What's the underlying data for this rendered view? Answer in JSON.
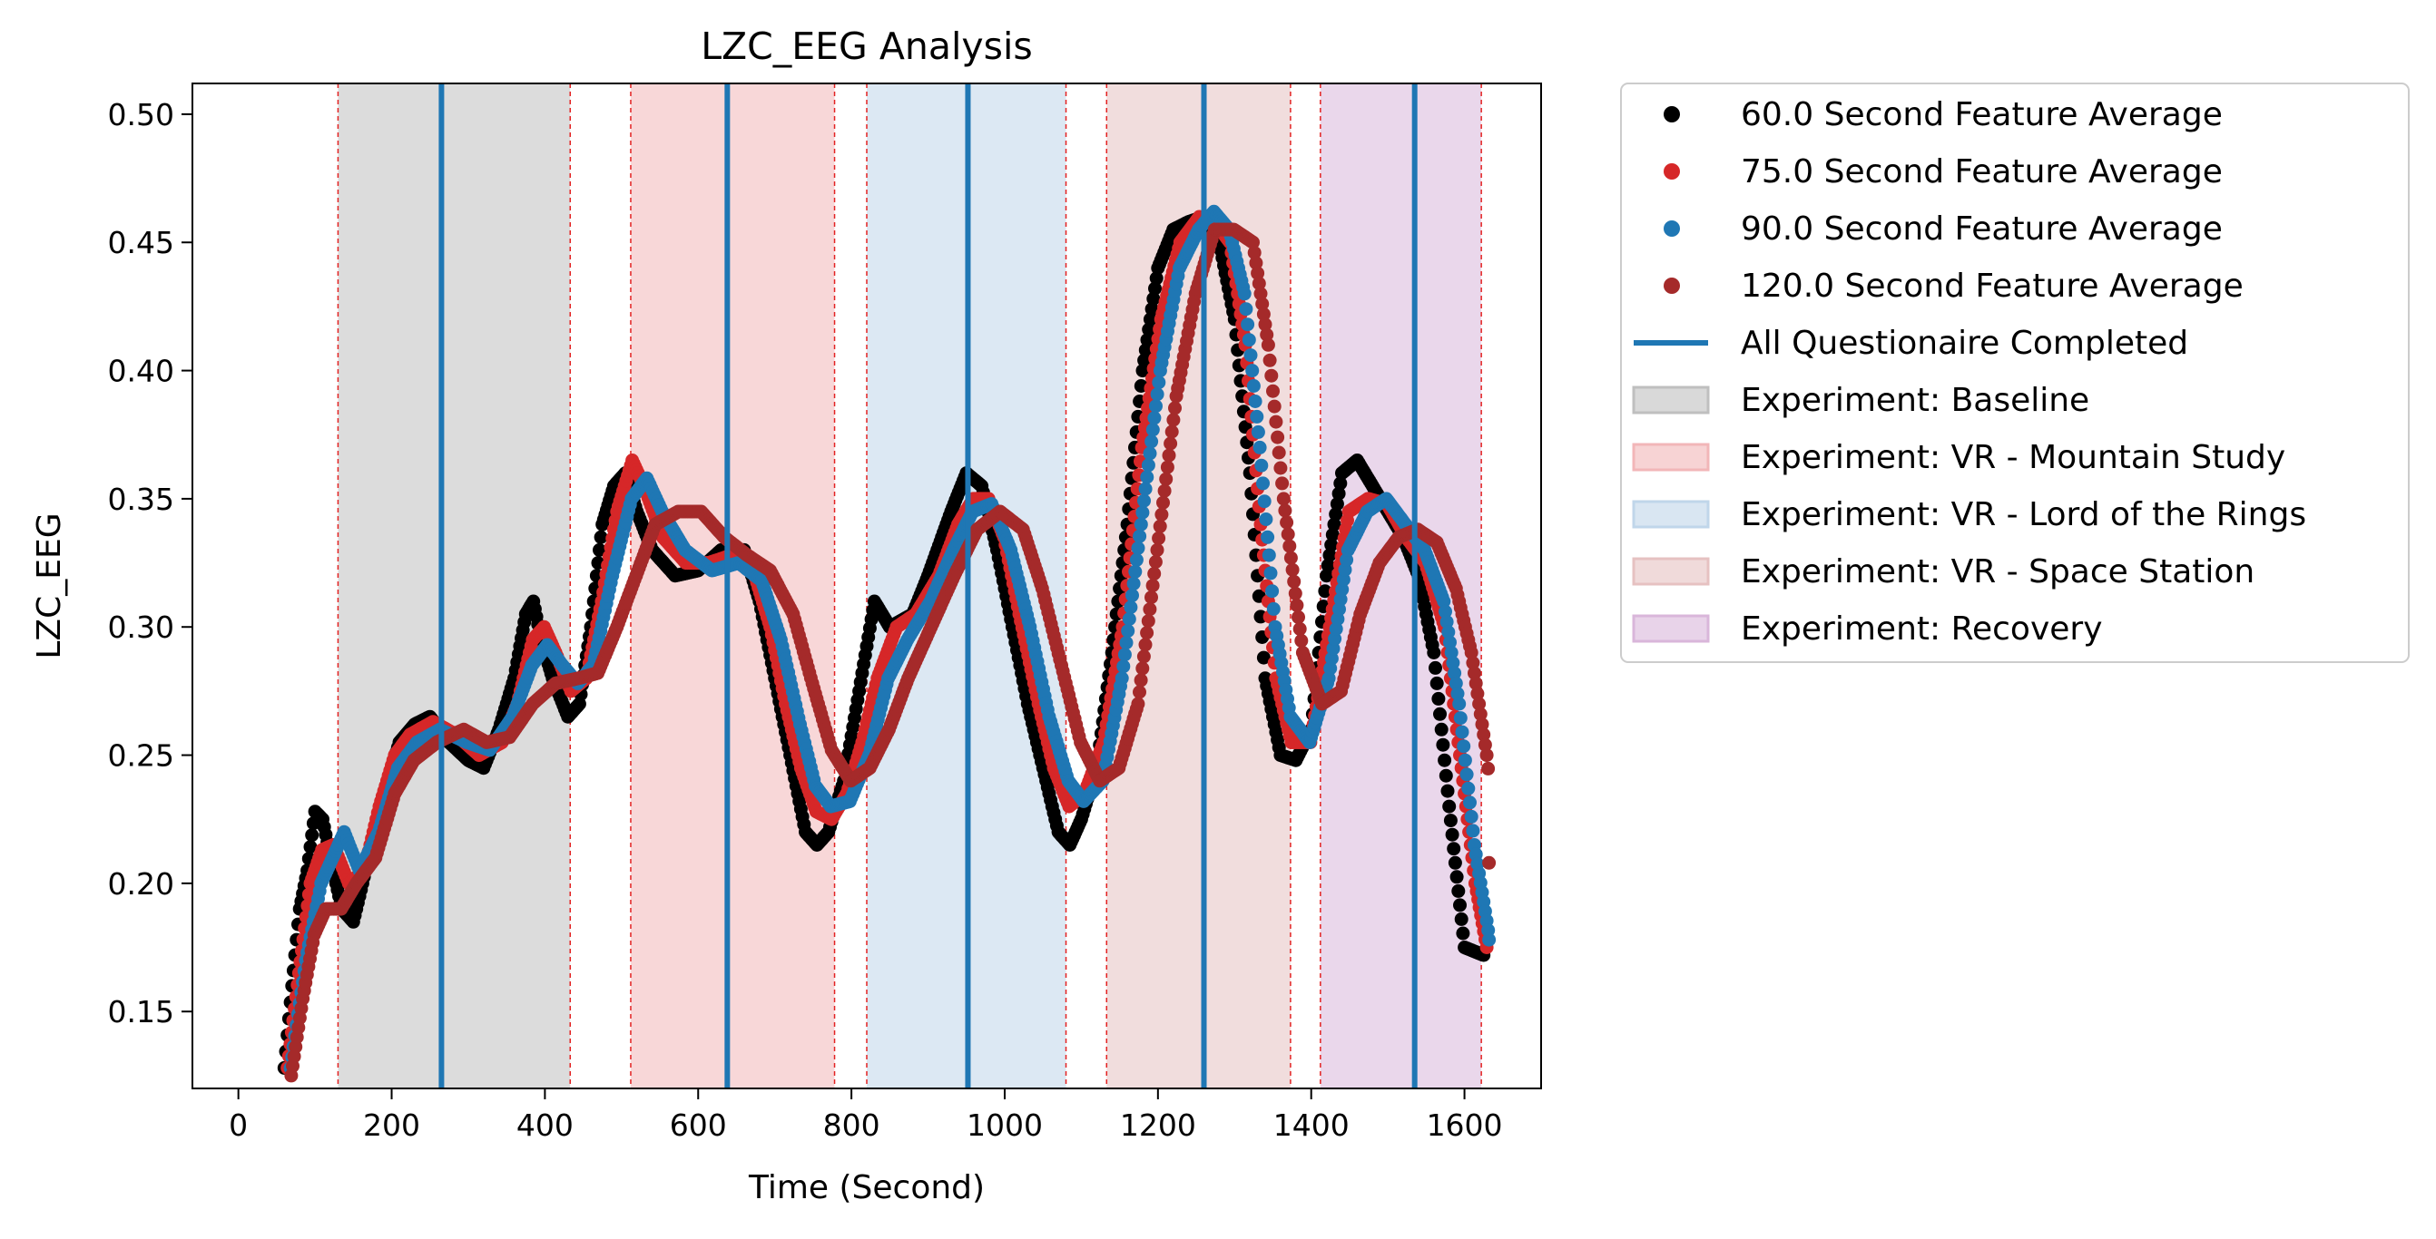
{
  "chart_data": {
    "type": "scatter",
    "title": "LZC_EEG Analysis",
    "xlabel": "Time (Second)",
    "ylabel": "LZC_EEG",
    "xlim": [
      -60,
      1700
    ],
    "ylim": [
      0.12,
      0.512
    ],
    "xticks": [
      0,
      200,
      400,
      600,
      800,
      1000,
      1200,
      1400,
      1600
    ],
    "yticks": [
      0.15,
      0.2,
      0.25,
      0.3,
      0.35,
      0.4,
      0.45,
      0.5
    ],
    "xtick_labels": [
      "0",
      "200",
      "400",
      "600",
      "800",
      "1000",
      "1200",
      "1400",
      "1600"
    ],
    "ytick_labels": [
      "0.15",
      "0.20",
      "0.25",
      "0.30",
      "0.35",
      "0.40",
      "0.45",
      "0.50"
    ],
    "grid": false,
    "legend_position": "outside-right-top",
    "regions": [
      {
        "label": "Experiment: Baseline",
        "x0": 130,
        "x1": 433,
        "color": "#bfbfbf"
      },
      {
        "label": "Experiment: VR - Mountain Study",
        "x0": 512,
        "x1": 778,
        "color": "#f2b6b8"
      },
      {
        "label": "Experiment: VR - Lord of the Rings",
        "x0": 820,
        "x1": 1080,
        "color": "#c0d6ea"
      },
      {
        "label": "Experiment: VR - Space Station",
        "x0": 1133,
        "x1": 1373,
        "color": "#e6c1c1"
      },
      {
        "label": "Experiment: Recovery",
        "x0": 1412,
        "x1": 1622,
        "color": "#d9b6da"
      }
    ],
    "questionnaire": {
      "label": "All Questionaire Completed",
      "x": [
        265,
        638,
        952,
        1260,
        1535
      ],
      "color": "#1f77b4"
    },
    "series": [
      {
        "name": "60.0 Second Feature Average",
        "color": "#000000",
        "offset": 0,
        "points": [
          [
            60,
            0.128
          ],
          [
            70,
            0.16
          ],
          [
            80,
            0.19
          ],
          [
            90,
            0.205
          ],
          [
            100,
            0.228
          ],
          [
            110,
            0.225
          ],
          [
            120,
            0.21
          ],
          [
            135,
            0.19
          ],
          [
            150,
            0.185
          ],
          [
            170,
            0.21
          ],
          [
            190,
            0.235
          ],
          [
            210,
            0.255
          ],
          [
            230,
            0.262
          ],
          [
            250,
            0.265
          ],
          [
            275,
            0.255
          ],
          [
            300,
            0.248
          ],
          [
            320,
            0.245
          ],
          [
            340,
            0.26
          ],
          [
            360,
            0.28
          ],
          [
            375,
            0.305
          ],
          [
            385,
            0.31
          ],
          [
            395,
            0.295
          ],
          [
            410,
            0.28
          ],
          [
            430,
            0.265
          ],
          [
            445,
            0.27
          ],
          [
            460,
            0.3
          ],
          [
            475,
            0.34
          ],
          [
            490,
            0.355
          ],
          [
            505,
            0.36
          ],
          [
            520,
            0.345
          ],
          [
            540,
            0.33
          ],
          [
            570,
            0.32
          ],
          [
            600,
            0.322
          ],
          [
            630,
            0.33
          ],
          [
            660,
            0.33
          ],
          [
            680,
            0.31
          ],
          [
            700,
            0.28
          ],
          [
            720,
            0.25
          ],
          [
            740,
            0.22
          ],
          [
            755,
            0.215
          ],
          [
            770,
            0.22
          ],
          [
            790,
            0.24
          ],
          [
            810,
            0.275
          ],
          [
            830,
            0.31
          ],
          [
            850,
            0.3
          ],
          [
            880,
            0.305
          ],
          [
            900,
            0.32
          ],
          [
            930,
            0.345
          ],
          [
            950,
            0.36
          ],
          [
            970,
            0.355
          ],
          [
            990,
            0.33
          ],
          [
            1010,
            0.3
          ],
          [
            1030,
            0.27
          ],
          [
            1050,
            0.245
          ],
          [
            1070,
            0.22
          ],
          [
            1085,
            0.215
          ],
          [
            1100,
            0.225
          ],
          [
            1120,
            0.245
          ],
          [
            1140,
            0.29
          ],
          [
            1160,
            0.34
          ],
          [
            1180,
            0.4
          ],
          [
            1200,
            0.44
          ],
          [
            1220,
            0.455
          ],
          [
            1240,
            0.458
          ],
          [
            1260,
            0.46
          ],
          [
            1280,
            0.45
          ],
          [
            1300,
            0.42
          ],
          [
            1320,
            0.36
          ],
          [
            1340,
            0.28
          ],
          [
            1360,
            0.25
          ],
          [
            1380,
            0.248
          ],
          [
            1400,
            0.26
          ],
          [
            1420,
            0.32
          ],
          [
            1440,
            0.36
          ],
          [
            1460,
            0.365
          ],
          [
            1480,
            0.355
          ],
          [
            1500,
            0.345
          ],
          [
            1520,
            0.335
          ],
          [
            1540,
            0.32
          ],
          [
            1560,
            0.29
          ],
          [
            1580,
            0.23
          ],
          [
            1600,
            0.175
          ],
          [
            1625,
            0.172
          ]
        ]
      },
      {
        "name": "75.0 Second Feature Average",
        "color": "#d62728",
        "offset": 4,
        "points": [
          [
            60,
            0.128
          ],
          [
            75,
            0.165
          ],
          [
            90,
            0.2
          ],
          [
            105,
            0.213
          ],
          [
            120,
            0.215
          ],
          [
            140,
            0.2
          ],
          [
            160,
            0.205
          ],
          [
            180,
            0.23
          ],
          [
            200,
            0.25
          ],
          [
            220,
            0.258
          ],
          [
            250,
            0.263
          ],
          [
            280,
            0.258
          ],
          [
            310,
            0.25
          ],
          [
            340,
            0.255
          ],
          [
            360,
            0.27
          ],
          [
            380,
            0.295
          ],
          [
            395,
            0.3
          ],
          [
            410,
            0.29
          ],
          [
            430,
            0.275
          ],
          [
            450,
            0.28
          ],
          [
            470,
            0.31
          ],
          [
            490,
            0.345
          ],
          [
            510,
            0.365
          ],
          [
            525,
            0.355
          ],
          [
            550,
            0.335
          ],
          [
            580,
            0.325
          ],
          [
            610,
            0.325
          ],
          [
            640,
            0.328
          ],
          [
            665,
            0.325
          ],
          [
            690,
            0.3
          ],
          [
            710,
            0.27
          ],
          [
            730,
            0.245
          ],
          [
            750,
            0.228
          ],
          [
            770,
            0.225
          ],
          [
            790,
            0.235
          ],
          [
            810,
            0.255
          ],
          [
            830,
            0.28
          ],
          [
            855,
            0.3
          ],
          [
            880,
            0.305
          ],
          [
            910,
            0.32
          ],
          [
            935,
            0.34
          ],
          [
            955,
            0.35
          ],
          [
            975,
            0.35
          ],
          [
            995,
            0.335
          ],
          [
            1015,
            0.305
          ],
          [
            1040,
            0.27
          ],
          [
            1060,
            0.245
          ],
          [
            1080,
            0.23
          ],
          [
            1100,
            0.235
          ],
          [
            1125,
            0.255
          ],
          [
            1150,
            0.3
          ],
          [
            1175,
            0.37
          ],
          [
            1200,
            0.42
          ],
          [
            1225,
            0.45
          ],
          [
            1250,
            0.46
          ],
          [
            1270,
            0.458
          ],
          [
            1290,
            0.45
          ],
          [
            1310,
            0.41
          ],
          [
            1330,
            0.34
          ],
          [
            1350,
            0.28
          ],
          [
            1370,
            0.255
          ],
          [
            1395,
            0.255
          ],
          [
            1420,
            0.3
          ],
          [
            1445,
            0.345
          ],
          [
            1470,
            0.35
          ],
          [
            1495,
            0.348
          ],
          [
            1520,
            0.335
          ],
          [
            1545,
            0.325
          ],
          [
            1570,
            0.3
          ],
          [
            1590,
            0.25
          ],
          [
            1610,
            0.2
          ],
          [
            1625,
            0.175
          ]
        ]
      },
      {
        "name": "90.0 Second Feature Average",
        "color": "#1f77b4",
        "offset": 8,
        "points": [
          [
            60,
            0.128
          ],
          [
            80,
            0.17
          ],
          [
            100,
            0.2
          ],
          [
            115,
            0.21
          ],
          [
            130,
            0.22
          ],
          [
            150,
            0.205
          ],
          [
            175,
            0.22
          ],
          [
            200,
            0.245
          ],
          [
            225,
            0.255
          ],
          [
            255,
            0.26
          ],
          [
            290,
            0.255
          ],
          [
            320,
            0.252
          ],
          [
            350,
            0.265
          ],
          [
            375,
            0.285
          ],
          [
            395,
            0.293
          ],
          [
            415,
            0.285
          ],
          [
            435,
            0.278
          ],
          [
            455,
            0.285
          ],
          [
            480,
            0.32
          ],
          [
            505,
            0.35
          ],
          [
            525,
            0.358
          ],
          [
            545,
            0.345
          ],
          [
            575,
            0.33
          ],
          [
            610,
            0.322
          ],
          [
            645,
            0.325
          ],
          [
            675,
            0.318
          ],
          [
            700,
            0.295
          ],
          [
            725,
            0.262
          ],
          [
            745,
            0.238
          ],
          [
            765,
            0.23
          ],
          [
            790,
            0.232
          ],
          [
            815,
            0.25
          ],
          [
            840,
            0.28
          ],
          [
            865,
            0.295
          ],
          [
            895,
            0.31
          ],
          [
            925,
            0.33
          ],
          [
            950,
            0.345
          ],
          [
            975,
            0.348
          ],
          [
            1000,
            0.33
          ],
          [
            1025,
            0.3
          ],
          [
            1050,
            0.265
          ],
          [
            1075,
            0.24
          ],
          [
            1095,
            0.232
          ],
          [
            1120,
            0.24
          ],
          [
            1145,
            0.28
          ],
          [
            1170,
            0.34
          ],
          [
            1195,
            0.4
          ],
          [
            1220,
            0.44
          ],
          [
            1245,
            0.455
          ],
          [
            1265,
            0.462
          ],
          [
            1285,
            0.455
          ],
          [
            1305,
            0.43
          ],
          [
            1325,
            0.37
          ],
          [
            1345,
            0.3
          ],
          [
            1365,
            0.265
          ],
          [
            1390,
            0.255
          ],
          [
            1415,
            0.28
          ],
          [
            1440,
            0.33
          ],
          [
            1465,
            0.345
          ],
          [
            1490,
            0.35
          ],
          [
            1515,
            0.34
          ],
          [
            1540,
            0.33
          ],
          [
            1565,
            0.31
          ],
          [
            1585,
            0.27
          ],
          [
            1605,
            0.215
          ],
          [
            1625,
            0.178
          ]
        ]
      },
      {
        "name": "120.0 Second Feature Average",
        "color": "#a52a2a",
        "offset": 14,
        "points": [
          [
            55,
            0.125
          ],
          [
            70,
            0.155
          ],
          [
            85,
            0.18
          ],
          [
            100,
            0.19
          ],
          [
            120,
            0.19
          ],
          [
            140,
            0.2
          ],
          [
            165,
            0.21
          ],
          [
            190,
            0.235
          ],
          [
            215,
            0.248
          ],
          [
            245,
            0.255
          ],
          [
            280,
            0.26
          ],
          [
            310,
            0.255
          ],
          [
            340,
            0.257
          ],
          [
            370,
            0.27
          ],
          [
            400,
            0.278
          ],
          [
            430,
            0.28
          ],
          [
            455,
            0.282
          ],
          [
            480,
            0.3
          ],
          [
            505,
            0.32
          ],
          [
            530,
            0.34
          ],
          [
            560,
            0.345
          ],
          [
            590,
            0.345
          ],
          [
            620,
            0.335
          ],
          [
            650,
            0.328
          ],
          [
            680,
            0.322
          ],
          [
            710,
            0.305
          ],
          [
            735,
            0.278
          ],
          [
            760,
            0.252
          ],
          [
            785,
            0.24
          ],
          [
            810,
            0.245
          ],
          [
            835,
            0.26
          ],
          [
            860,
            0.28
          ],
          [
            890,
            0.3
          ],
          [
            920,
            0.32
          ],
          [
            950,
            0.338
          ],
          [
            980,
            0.345
          ],
          [
            1010,
            0.338
          ],
          [
            1035,
            0.315
          ],
          [
            1060,
            0.285
          ],
          [
            1085,
            0.255
          ],
          [
            1110,
            0.24
          ],
          [
            1135,
            0.245
          ],
          [
            1160,
            0.27
          ],
          [
            1185,
            0.33
          ],
          [
            1210,
            0.39
          ],
          [
            1235,
            0.43
          ],
          [
            1260,
            0.455
          ],
          [
            1285,
            0.455
          ],
          [
            1310,
            0.45
          ],
          [
            1330,
            0.41
          ],
          [
            1350,
            0.35
          ],
          [
            1375,
            0.29
          ],
          [
            1400,
            0.27
          ],
          [
            1425,
            0.275
          ],
          [
            1450,
            0.305
          ],
          [
            1475,
            0.325
          ],
          [
            1500,
            0.335
          ],
          [
            1525,
            0.338
          ],
          [
            1550,
            0.333
          ],
          [
            1575,
            0.315
          ],
          [
            1595,
            0.29
          ],
          [
            1615,
            0.25
          ],
          [
            1630,
            0.208
          ]
        ]
      }
    ]
  }
}
